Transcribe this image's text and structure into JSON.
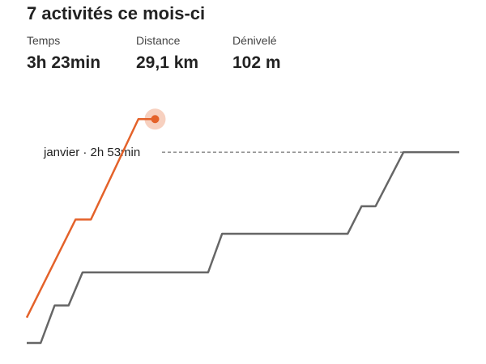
{
  "header": {
    "title": "7 activités ce mois-ci"
  },
  "stats": [
    {
      "label": "Temps",
      "value": "3h 23min"
    },
    {
      "label": "Distance",
      "value": "29,1 km"
    },
    {
      "label": "Dénivelé",
      "value": "102 m"
    }
  ],
  "chart_data": {
    "type": "line",
    "xlim": [
      0,
      31
    ],
    "ylim": [
      0,
      223
    ],
    "reference": {
      "label": "janvier · 2h 53min",
      "value": 173
    },
    "series": [
      {
        "name": "janvier",
        "color": "#666666",
        "x": [
          0,
          1,
          2,
          3,
          4,
          13,
          14,
          23,
          24,
          25,
          27,
          31
        ],
        "values": [
          0,
          0,
          34,
          34,
          64,
          64,
          99,
          99,
          124,
          124,
          173,
          173
        ]
      },
      {
        "color": "#e4622a",
        "x": [
          0,
          3.5,
          4.6,
          8,
          9.2
        ],
        "values": [
          23,
          112,
          112,
          203,
          203
        ]
      }
    ]
  }
}
